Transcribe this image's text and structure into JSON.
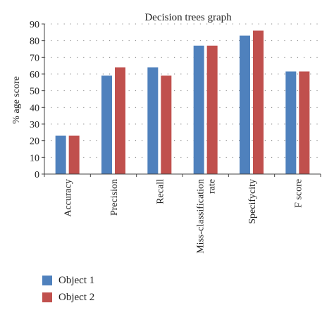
{
  "chart_data": {
    "type": "bar",
    "title": "Decision trees graph",
    "xlabel": "",
    "ylabel": "% age score",
    "ylim": [
      0,
      90
    ],
    "yticks": [
      0,
      10,
      20,
      30,
      40,
      50,
      60,
      70,
      80,
      90
    ],
    "categories": [
      "Accuracy",
      "Precision",
      "Recall",
      "Miss-classification rate",
      "Specifycity",
      "F score"
    ],
    "category_lines": [
      [
        "Accuracy"
      ],
      [
        "Precision"
      ],
      [
        "Recall"
      ],
      [
        "Miss-classification",
        "rate"
      ],
      [
        "Specifycity"
      ],
      [
        "F score"
      ]
    ],
    "series": [
      {
        "name": "Object 1",
        "color": "#4f81bd",
        "values": [
          23,
          59,
          64,
          77,
          83,
          61.5
        ]
      },
      {
        "name": "Object 2",
        "color": "#c0504d",
        "values": [
          23,
          64,
          59,
          77,
          86,
          61.5
        ]
      }
    ],
    "grid": "horizontal dotted",
    "legend_position": "bottom-left"
  }
}
